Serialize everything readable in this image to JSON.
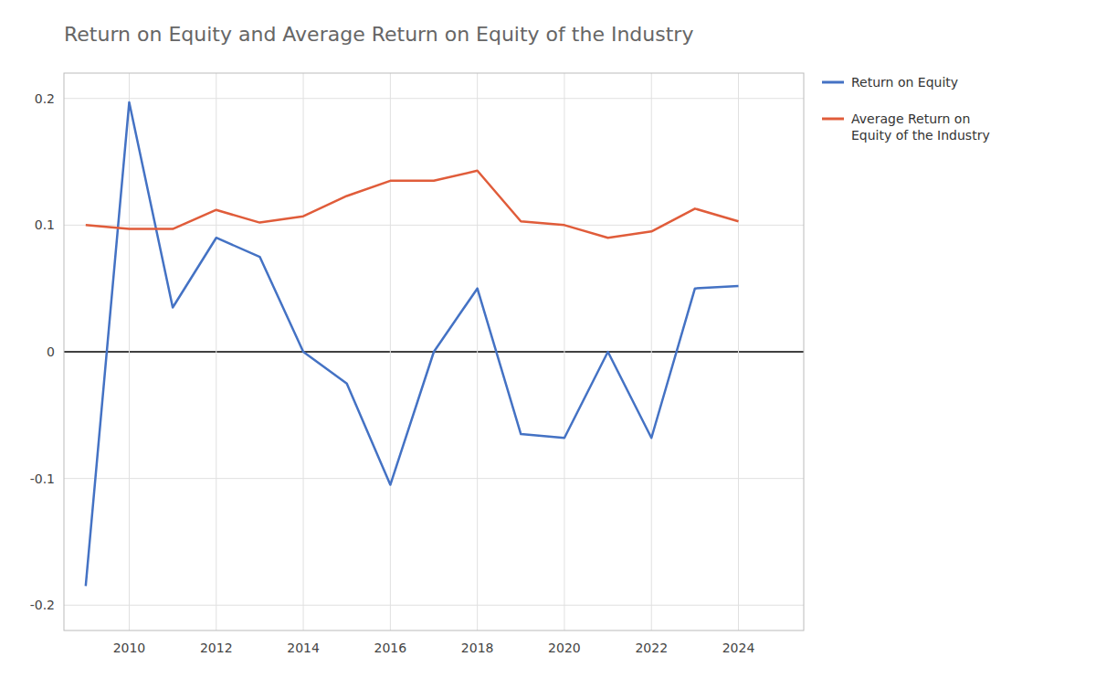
{
  "chart_data": {
    "type": "line",
    "title": "Return on Equity and Average Return on Equity of the Industry",
    "x": [
      2009,
      2010,
      2011,
      2012,
      2013,
      2014,
      2015,
      2016,
      2017,
      2018,
      2019,
      2020,
      2021,
      2022,
      2023,
      2024
    ],
    "series": [
      {
        "name": "Return on Equity",
        "color": "#4472C4",
        "values": [
          -0.185,
          0.197,
          0.035,
          0.09,
          0.075,
          0.0,
          -0.025,
          -0.105,
          0.0,
          0.05,
          -0.065,
          -0.068,
          0.0,
          -0.068,
          0.05,
          0.052
        ]
      },
      {
        "name": "Average Return on\nEquity of the Industry",
        "color": "#E05C3A",
        "values": [
          0.1,
          0.097,
          0.097,
          0.112,
          0.102,
          0.107,
          0.123,
          0.135,
          0.135,
          0.143,
          0.103,
          0.1,
          0.09,
          0.095,
          0.113,
          0.103
        ]
      }
    ],
    "xlim": [
      2008.5,
      2025.5
    ],
    "xticks": [
      2010,
      2012,
      2014,
      2016,
      2018,
      2020,
      2022,
      2024
    ],
    "ylim": [
      -0.22,
      0.22
    ],
    "yticks": [
      -0.2,
      -0.1,
      0,
      0.1,
      0.2
    ],
    "grid": true,
    "legend": "right"
  }
}
